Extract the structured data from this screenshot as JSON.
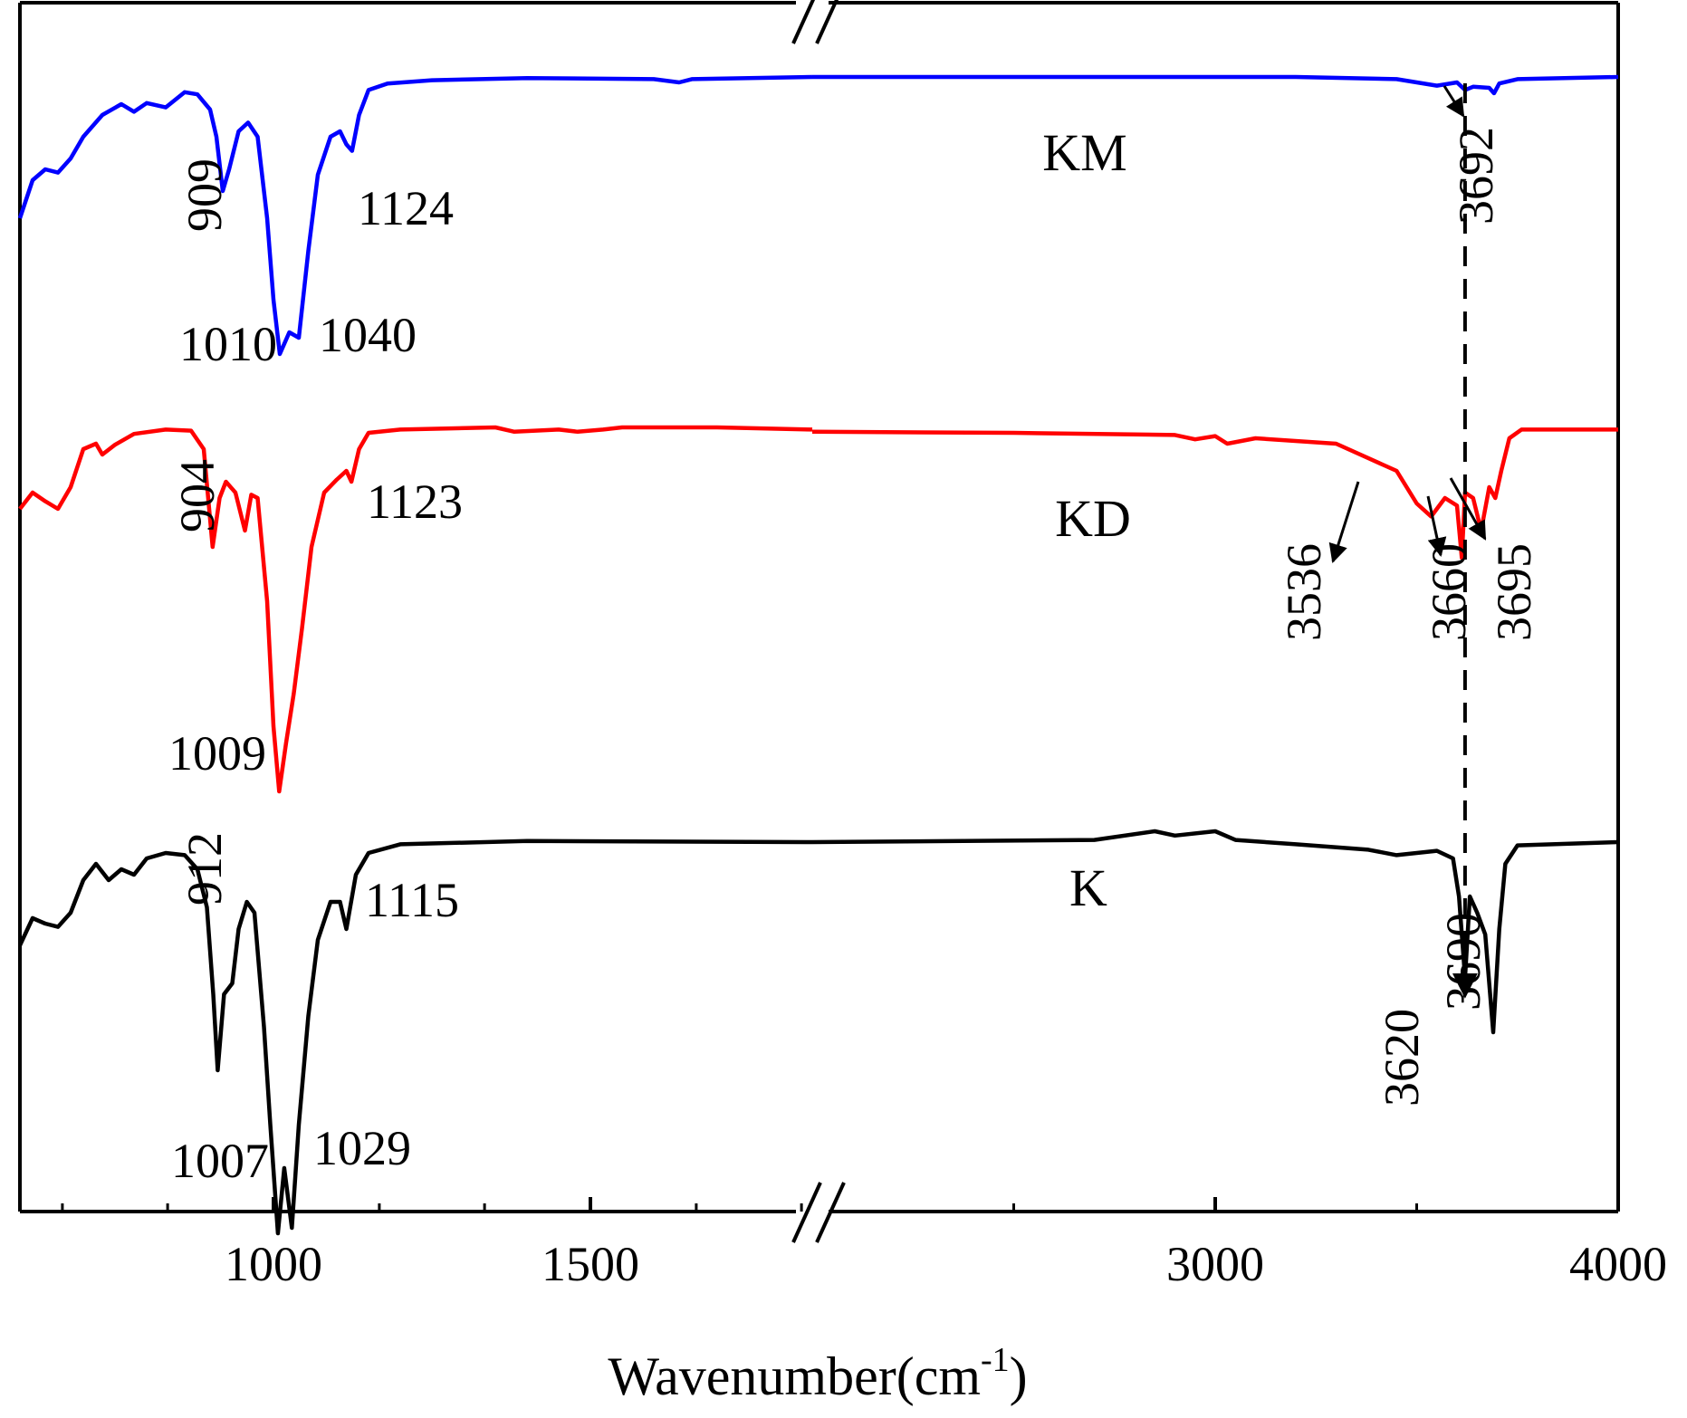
{
  "chart_data": {
    "type": "line",
    "title": "",
    "xlabel": "Wavenumber(cm",
    "xlabel_sup": "-1",
    "xlabel_suffix": ")",
    "ylabel": "",
    "x_axis_break": true,
    "x_segments": [
      {
        "range": [
          600,
          1850
        ],
        "ticks": [
          1000,
          1500
        ],
        "minor_ticks": [
          667,
          833,
          1167,
          1333,
          1667,
          1833
        ]
      },
      {
        "range": [
          2000,
          4000
        ],
        "ticks": [
          3000,
          4000
        ],
        "minor_ticks": [
          2500,
          3500
        ]
      }
    ],
    "tick_labels": [
      "1000",
      "1500",
      "3000",
      "4000"
    ],
    "series": [
      {
        "name": "KM",
        "color": "#0000ff",
        "baseline": 0.0,
        "points": [
          [
            600,
            -1.3
          ],
          [
            620,
            -0.95
          ],
          [
            640,
            -0.85
          ],
          [
            660,
            -0.88
          ],
          [
            680,
            -0.75
          ],
          [
            700,
            -0.55
          ],
          [
            730,
            -0.35
          ],
          [
            760,
            -0.25
          ],
          [
            780,
            -0.32
          ],
          [
            800,
            -0.24
          ],
          [
            830,
            -0.28
          ],
          [
            860,
            -0.14
          ],
          [
            880,
            -0.16
          ],
          [
            900,
            -0.3
          ],
          [
            910,
            -0.55
          ],
          [
            920,
            -1.05
          ],
          [
            930,
            -0.85
          ],
          [
            945,
            -0.5
          ],
          [
            960,
            -0.42
          ],
          [
            975,
            -0.55
          ],
          [
            990,
            -1.3
          ],
          [
            1000,
            -2.05
          ],
          [
            1010,
            -2.55
          ],
          [
            1025,
            -2.35
          ],
          [
            1040,
            -2.4
          ],
          [
            1055,
            -1.6
          ],
          [
            1070,
            -0.9
          ],
          [
            1090,
            -0.55
          ],
          [
            1105,
            -0.5
          ],
          [
            1115,
            -0.62
          ],
          [
            1124,
            -0.68
          ],
          [
            1135,
            -0.35
          ],
          [
            1150,
            -0.12
          ],
          [
            1180,
            -0.06
          ],
          [
            1250,
            -0.03
          ],
          [
            1400,
            -0.01
          ],
          [
            1600,
            -0.02
          ],
          [
            1640,
            -0.05
          ],
          [
            1660,
            -0.02
          ],
          [
            1850,
            0.0
          ],
          [
            2000,
            0.0
          ],
          [
            2500,
            0.0
          ],
          [
            3000,
            0.0
          ],
          [
            3200,
            0.0
          ],
          [
            3450,
            -0.02
          ],
          [
            3550,
            -0.08
          ],
          [
            3600,
            -0.05
          ],
          [
            3620,
            -0.12
          ],
          [
            3640,
            -0.09
          ],
          [
            3680,
            -0.1
          ],
          [
            3692,
            -0.15
          ],
          [
            3705,
            -0.06
          ],
          [
            3750,
            -0.02
          ],
          [
            4000,
            0.0
          ]
        ]
      },
      {
        "name": "KD",
        "color": "#ff0000",
        "baseline": 0.0,
        "points": [
          [
            600,
            -0.75
          ],
          [
            620,
            -0.6
          ],
          [
            640,
            -0.68
          ],
          [
            660,
            -0.75
          ],
          [
            680,
            -0.55
          ],
          [
            700,
            -0.2
          ],
          [
            720,
            -0.15
          ],
          [
            730,
            -0.25
          ],
          [
            750,
            -0.16
          ],
          [
            780,
            -0.06
          ],
          [
            830,
            -0.02
          ],
          [
            870,
            -0.03
          ],
          [
            890,
            -0.2
          ],
          [
            904,
            -1.1
          ],
          [
            915,
            -0.65
          ],
          [
            925,
            -0.5
          ],
          [
            940,
            -0.6
          ],
          [
            955,
            -0.95
          ],
          [
            965,
            -0.62
          ],
          [
            975,
            -0.65
          ],
          [
            990,
            -1.6
          ],
          [
            1000,
            -2.75
          ],
          [
            1009,
            -3.35
          ],
          [
            1020,
            -2.9
          ],
          [
            1032,
            -2.45
          ],
          [
            1045,
            -1.85
          ],
          [
            1060,
            -1.1
          ],
          [
            1080,
            -0.6
          ],
          [
            1100,
            -0.48
          ],
          [
            1115,
            -0.4
          ],
          [
            1123,
            -0.5
          ],
          [
            1135,
            -0.2
          ],
          [
            1150,
            -0.05
          ],
          [
            1200,
            -0.02
          ],
          [
            1350,
            0.0
          ],
          [
            1380,
            -0.04
          ],
          [
            1450,
            -0.02
          ],
          [
            1480,
            -0.04
          ],
          [
            1520,
            -0.02
          ],
          [
            1550,
            0.0
          ],
          [
            1700,
            0.0
          ],
          [
            1850,
            -0.02
          ],
          [
            2000,
            -0.04
          ],
          [
            2500,
            -0.05
          ],
          [
            2900,
            -0.07
          ],
          [
            2950,
            -0.11
          ],
          [
            3000,
            -0.08
          ],
          [
            3030,
            -0.15
          ],
          [
            3100,
            -0.1
          ],
          [
            3300,
            -0.15
          ],
          [
            3450,
            -0.4
          ],
          [
            3500,
            -0.7
          ],
          [
            3536,
            -0.82
          ],
          [
            3570,
            -0.65
          ],
          [
            3600,
            -0.72
          ],
          [
            3612,
            -1.2
          ],
          [
            3620,
            -0.6
          ],
          [
            3640,
            -0.65
          ],
          [
            3660,
            -0.95
          ],
          [
            3680,
            -0.55
          ],
          [
            3695,
            -0.65
          ],
          [
            3710,
            -0.4
          ],
          [
            3730,
            -0.1
          ],
          [
            3760,
            -0.02
          ],
          [
            4000,
            -0.02
          ]
        ]
      },
      {
        "name": "K",
        "color": "#000000",
        "baseline": 0.0,
        "points": [
          [
            600,
            -0.95
          ],
          [
            620,
            -0.7
          ],
          [
            640,
            -0.75
          ],
          [
            660,
            -0.78
          ],
          [
            680,
            -0.65
          ],
          [
            700,
            -0.35
          ],
          [
            720,
            -0.2
          ],
          [
            740,
            -0.35
          ],
          [
            760,
            -0.25
          ],
          [
            780,
            -0.3
          ],
          [
            800,
            -0.15
          ],
          [
            830,
            -0.1
          ],
          [
            860,
            -0.12
          ],
          [
            880,
            -0.25
          ],
          [
            895,
            -0.6
          ],
          [
            905,
            -1.4
          ],
          [
            912,
            -2.1
          ],
          [
            922,
            -1.4
          ],
          [
            935,
            -1.3
          ],
          [
            945,
            -0.8
          ],
          [
            958,
            -0.55
          ],
          [
            970,
            -0.65
          ],
          [
            985,
            -1.7
          ],
          [
            995,
            -2.6
          ],
          [
            1007,
            -3.6
          ],
          [
            1017,
            -3.0
          ],
          [
            1029,
            -3.55
          ],
          [
            1040,
            -2.6
          ],
          [
            1055,
            -1.6
          ],
          [
            1070,
            -0.9
          ],
          [
            1090,
            -0.55
          ],
          [
            1105,
            -0.55
          ],
          [
            1115,
            -0.8
          ],
          [
            1130,
            -0.3
          ],
          [
            1150,
            -0.1
          ],
          [
            1200,
            -0.02
          ],
          [
            1400,
            0.01
          ],
          [
            1850,
            0.0
          ],
          [
            2000,
            0.0
          ],
          [
            2700,
            0.02
          ],
          [
            2850,
            0.1
          ],
          [
            2900,
            0.06
          ],
          [
            3000,
            0.1
          ],
          [
            3050,
            0.02
          ],
          [
            3200,
            -0.02
          ],
          [
            3380,
            -0.07
          ],
          [
            3450,
            -0.12
          ],
          [
            3550,
            -0.08
          ],
          [
            3590,
            -0.15
          ],
          [
            3605,
            -0.5
          ],
          [
            3620,
            -1.25
          ],
          [
            3632,
            -0.5
          ],
          [
            3650,
            -0.65
          ],
          [
            3670,
            -0.85
          ],
          [
            3690,
            -1.75
          ],
          [
            3705,
            -0.8
          ],
          [
            3720,
            -0.2
          ],
          [
            3750,
            -0.03
          ],
          [
            4000,
            0.0
          ]
        ]
      }
    ],
    "series_labels": [
      "KM",
      "KD",
      "K"
    ],
    "peak_labels": [
      "909",
      "1010",
      "1040",
      "1124",
      "3692",
      "904",
      "1009",
      "1123",
      "3536",
      "3660",
      "3695",
      "912",
      "1007",
      "1029",
      "1115",
      "3620",
      "3690"
    ],
    "reference_line_x": 3620
  }
}
